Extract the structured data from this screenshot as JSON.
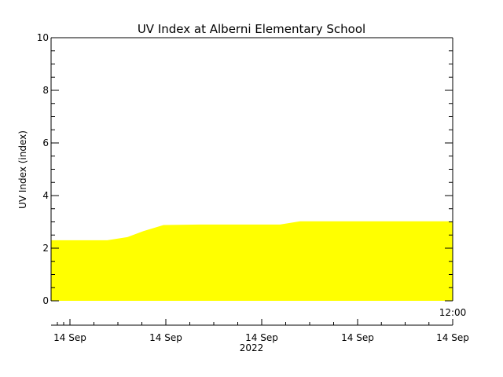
{
  "chart_data": {
    "type": "area",
    "title": "UV Index at Alberni Elementary School",
    "ylabel": "UV Index (index)",
    "ylim": [
      0,
      10
    ],
    "yticks": [
      0,
      2,
      4,
      6,
      8,
      10
    ],
    "x_tick_labels": [
      "14 Sep",
      "14 Sep",
      "14 Sep",
      "14 Sep",
      "14 Sep"
    ],
    "x_year_label": "2022",
    "x_time_label": "12:00",
    "fill_color": "#ffff00",
    "series": [
      {
        "points": [
          {
            "t": 0.0,
            "value": 2.3
          },
          {
            "t": 0.14,
            "value": 2.3
          },
          {
            "t": 0.19,
            "value": 2.42
          },
          {
            "t": 0.23,
            "value": 2.65
          },
          {
            "t": 0.28,
            "value": 2.88
          },
          {
            "t": 0.37,
            "value": 2.9
          },
          {
            "t": 0.57,
            "value": 2.9
          },
          {
            "t": 0.62,
            "value": 3.02
          },
          {
            "t": 1.0,
            "value": 3.02
          }
        ]
      }
    ]
  }
}
